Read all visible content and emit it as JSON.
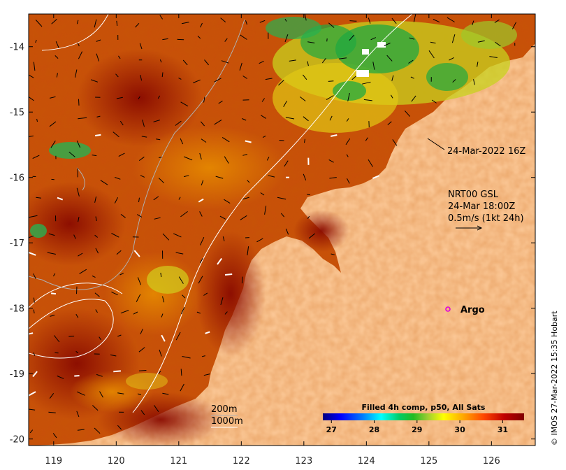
{
  "map": {
    "lon_ticks": [
      "119",
      "120",
      "121",
      "122",
      "123",
      "124",
      "125",
      "126"
    ],
    "lat_ticks": [
      "-14",
      "-15",
      "-16",
      "-17",
      "-18",
      "-19",
      "-20"
    ],
    "lon_range": [
      118.6,
      126.7
    ],
    "lat_range": [
      -20.1,
      -13.5
    ],
    "land_color": "#fdcb9b"
  },
  "annotations": {
    "pass_time": "24-Mar-2022 16Z",
    "current_line1": "NRT00 GSL",
    "current_line2": "24-Mar 18:00Z",
    "current_line3": "0.5m/s (1kt 24h)",
    "argo_label": "Argo",
    "contour_200": "200m",
    "contour_1000": "1000m"
  },
  "colorbar": {
    "title": "Filled 4h comp, p50, All Sats",
    "ticks": [
      "27",
      "28",
      "29",
      "30",
      "31"
    ],
    "range": [
      26.8,
      31.5
    ],
    "colors": [
      "#00007f",
      "#0000ff",
      "#007fff",
      "#00ffff",
      "#00cc66",
      "#22bb22",
      "#9acd32",
      "#ffff00",
      "#ffa500",
      "#ff4500",
      "#c00000",
      "#800000"
    ]
  },
  "credit": "© IMOS 27-Mar-2022 15:35 Hobart"
}
